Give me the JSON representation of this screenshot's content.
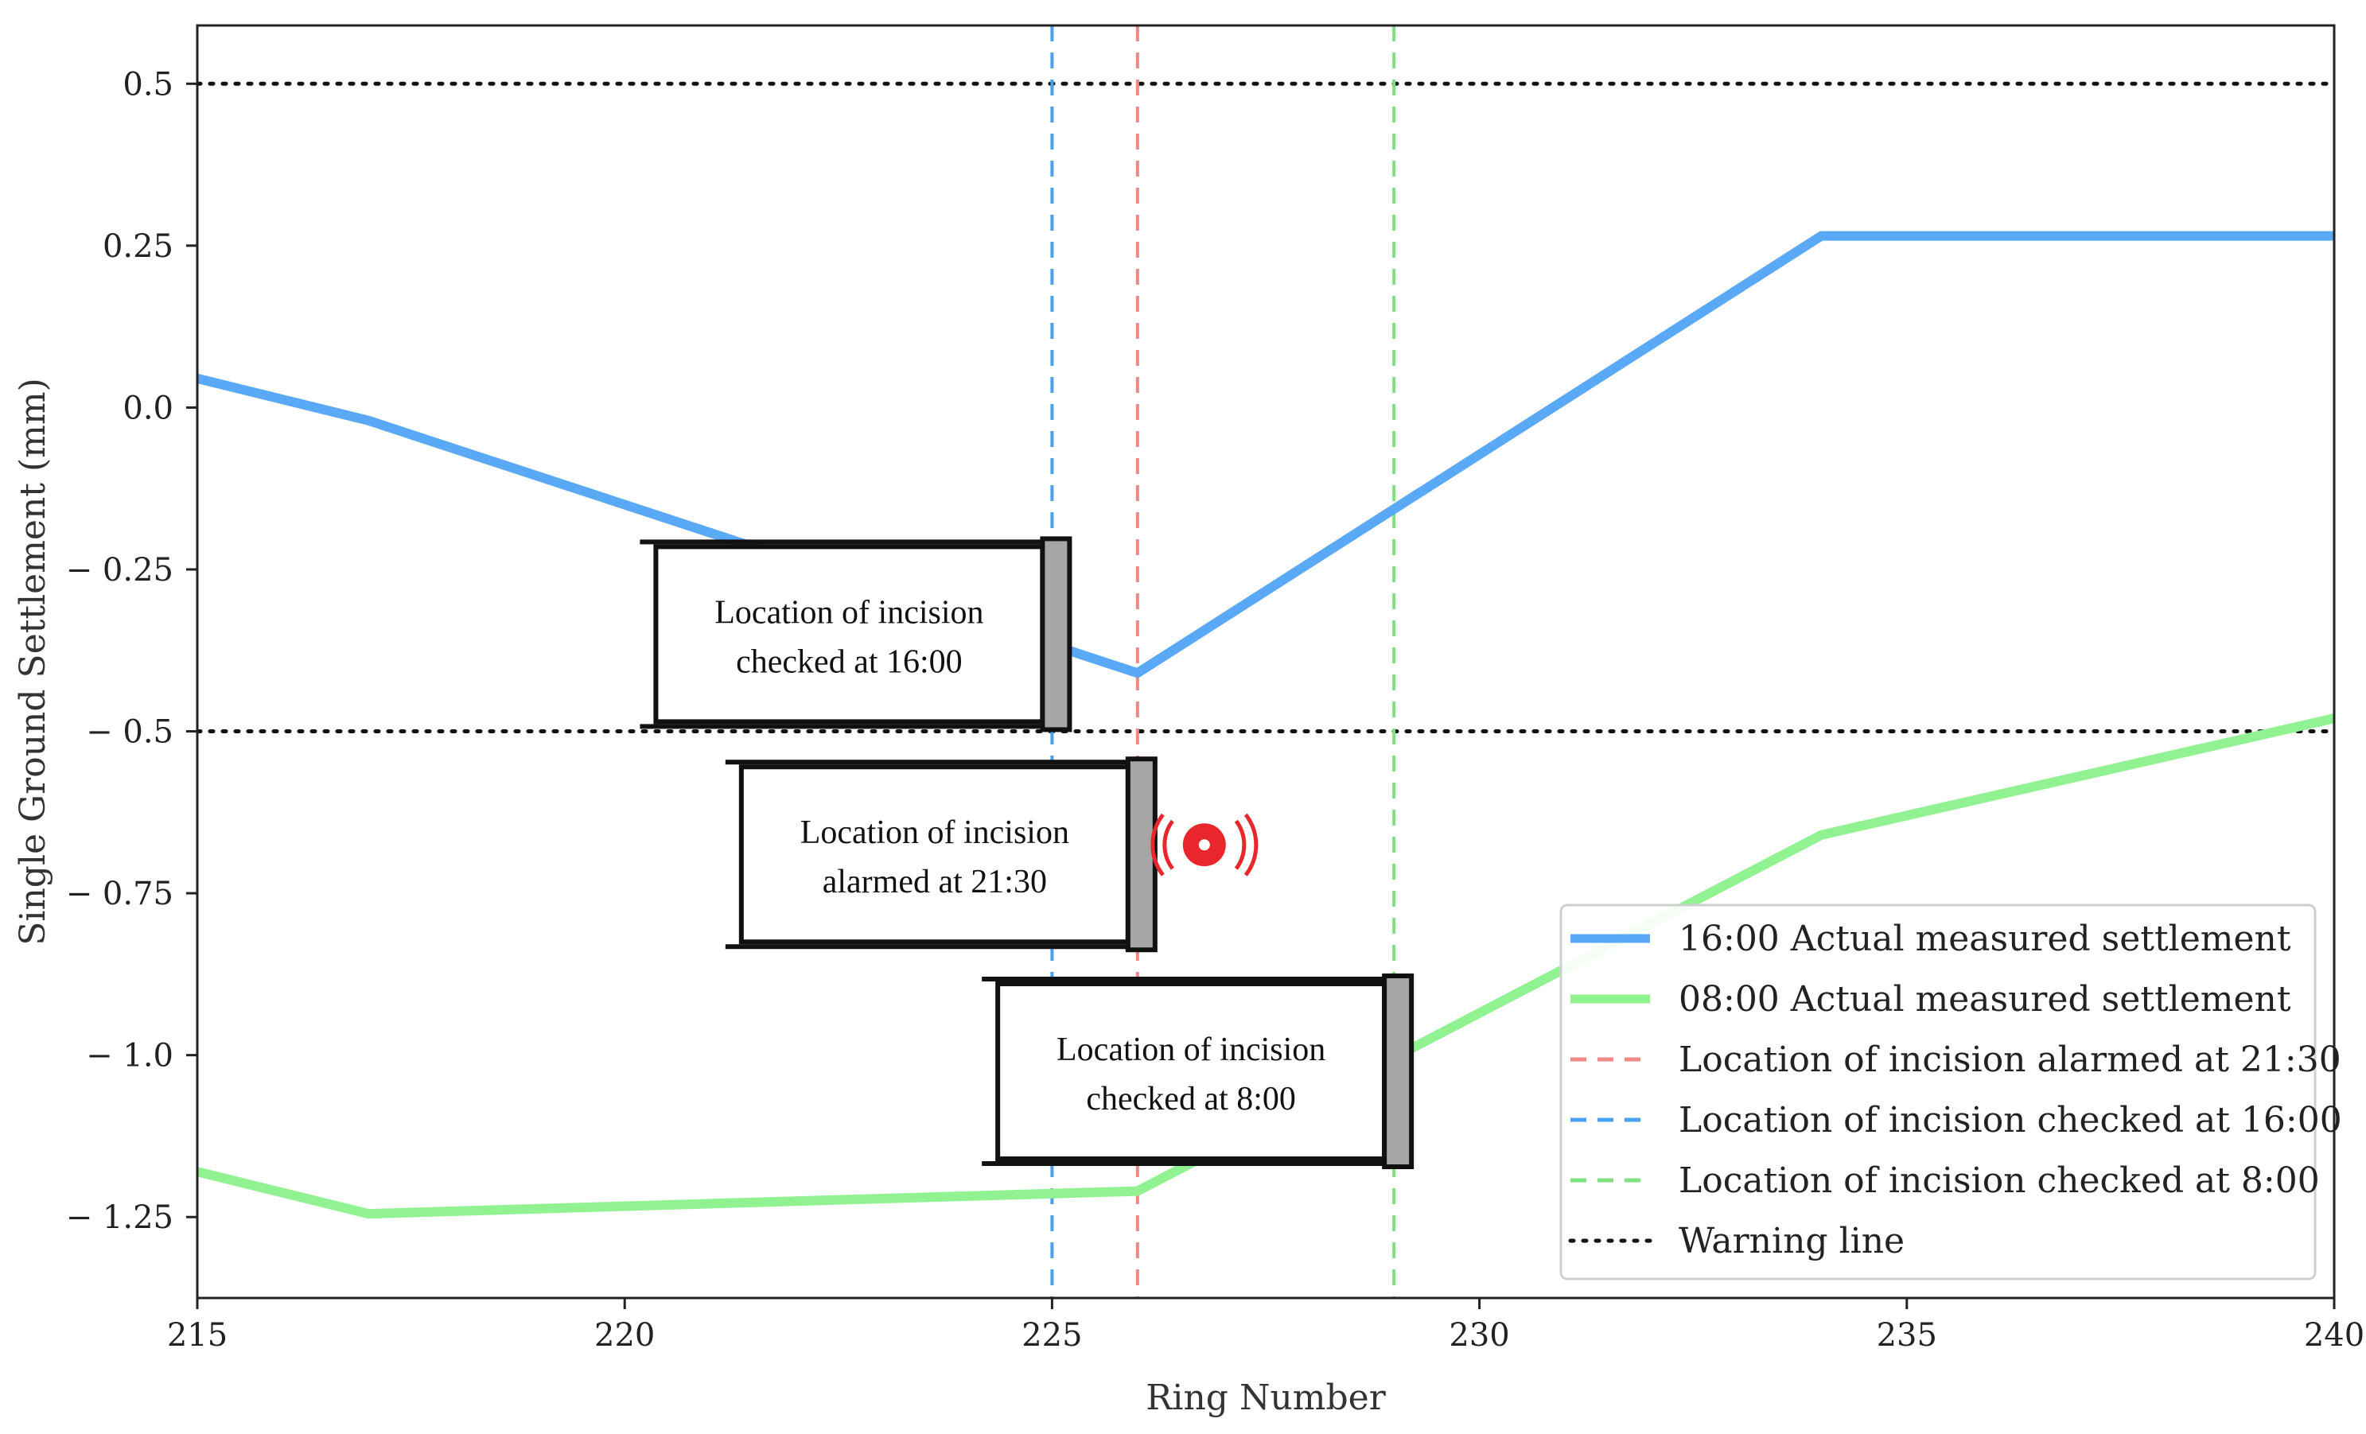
{
  "chart_data": {
    "type": "line",
    "xlabel": "Ring Number",
    "ylabel": "Single Ground Settlement (mm)",
    "xlim": [
      215,
      240
    ],
    "ylim": [
      -1.375,
      0.59
    ],
    "xticks": [
      215,
      220,
      225,
      230,
      235,
      240
    ],
    "xtick_labels": [
      "215",
      "220",
      "225",
      "230",
      "235",
      "240"
    ],
    "yticks": [
      0.5,
      0.25,
      0.0,
      -0.25,
      -0.5,
      -0.75,
      -1.0,
      -1.25
    ],
    "ytick_labels": [
      "0.5",
      "0.25",
      "0.0",
      "− 0.25",
      "− 0.5",
      "− 0.75",
      "− 1.0",
      "− 1.25"
    ],
    "grid": false,
    "legend_position": "lower-right",
    "series": [
      {
        "name": "16:00 Actual measured settlement",
        "color": "#5aa9f7",
        "style": "solid",
        "x": [
          215,
          217,
          226,
          234,
          240
        ],
        "y": [
          0.045,
          -0.02,
          -0.41,
          0.265,
          0.265
        ]
      },
      {
        "name": "08:00 Actual measured settlement",
        "color": "#90f290",
        "style": "solid",
        "x": [
          215,
          217,
          226,
          234,
          240
        ],
        "y": [
          -1.18,
          -1.245,
          -1.21,
          -0.66,
          -0.48
        ]
      }
    ],
    "vlines": [
      {
        "name": "Location of incision alarmed at 21:30",
        "x": 226,
        "color": "#f08888",
        "style": "dashed"
      },
      {
        "name": "Location of incision checked at 16:00",
        "x": 225,
        "color": "#4aa0f0",
        "style": "dashed"
      },
      {
        "name": "Location of incision checked at 8:00",
        "x": 229,
        "color": "#7fe07f",
        "style": "dashed"
      }
    ],
    "hlines": [
      {
        "name": "Warning line",
        "y": 0.5,
        "color": "#111111",
        "style": "dotted"
      },
      {
        "name": "Warning line",
        "y": -0.5,
        "color": "#111111",
        "style": "dotted"
      }
    ],
    "legend": [
      {
        "label": "16:00 Actual measured settlement",
        "color": "#5aa9f7",
        "style": "solid"
      },
      {
        "label": "08:00 Actual measured settlement",
        "color": "#90f290",
        "style": "solid"
      },
      {
        "label": "Location of incision alarmed at 21:30",
        "color": "#f08888",
        "style": "dashed"
      },
      {
        "label": "Location of incision checked at 16:00",
        "color": "#4aa0f0",
        "style": "dashed"
      },
      {
        "label": "Location of incision checked at 8:00",
        "color": "#7fe07f",
        "style": "dashed"
      },
      {
        "label": "Warning line",
        "color": "#111111",
        "style": "dotted"
      }
    ],
    "annotations": [
      {
        "lines": [
          "Location of incision",
          "checked at 16:00"
        ],
        "x_right": 225,
        "y_center": -0.35
      },
      {
        "lines": [
          "Location of incision",
          "alarmed at 21:30"
        ],
        "x_right": 226,
        "y_center": -0.69,
        "alarm_icon": "alarm-icon",
        "alarm_color": "#e8262b"
      },
      {
        "lines": [
          "Location of incision",
          "checked at 8:00"
        ],
        "x_right": 229,
        "y_center": -1.025
      }
    ]
  }
}
